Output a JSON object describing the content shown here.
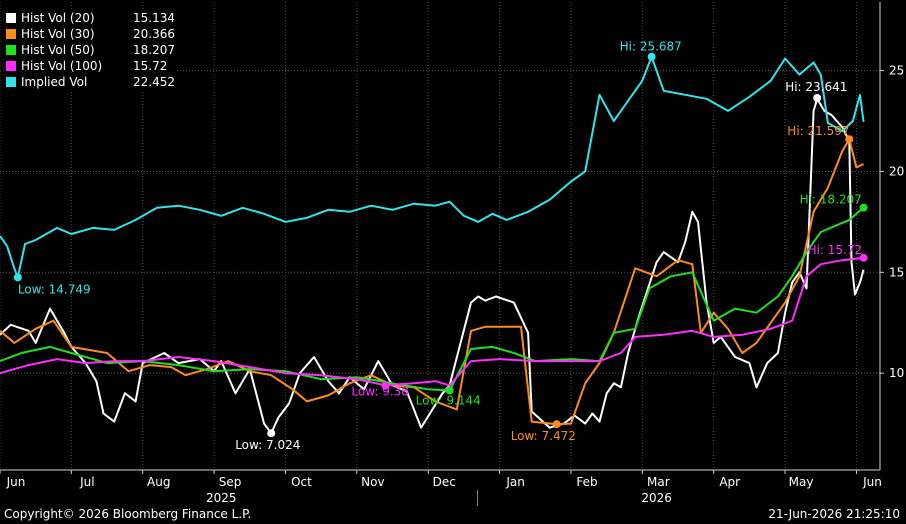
{
  "chart_data": {
    "type": "line",
    "ylim": [
      5.2,
      28.4
    ],
    "yticks": [
      10,
      15,
      20,
      25
    ],
    "month_ticks": [
      "Jun",
      "Jul",
      "Aug",
      "Sep",
      "Oct",
      "Nov",
      "Dec",
      "Jan",
      "Feb",
      "Mar",
      "Apr",
      "May",
      "Jun"
    ],
    "years": [
      {
        "label": "2025"
      },
      {
        "label": "2026"
      }
    ],
    "series": [
      {
        "name": "Hist Vol (20)",
        "last": "15.134",
        "color": "#ffffff",
        "points": [
          [
            0,
            11.9
          ],
          [
            0.15,
            12.4
          ],
          [
            0.4,
            12.1
          ],
          [
            0.5,
            11.5
          ],
          [
            0.7,
            13.2
          ],
          [
            0.9,
            12.0
          ],
          [
            1.0,
            11.3
          ],
          [
            1.2,
            10.5
          ],
          [
            1.35,
            9.6
          ],
          [
            1.45,
            8.0
          ],
          [
            1.6,
            7.6
          ],
          [
            1.75,
            9.0
          ],
          [
            1.9,
            8.6
          ],
          [
            2.0,
            10.5
          ],
          [
            2.3,
            11.0
          ],
          [
            2.5,
            10.5
          ],
          [
            2.8,
            10.7
          ],
          [
            3.0,
            10.1
          ],
          [
            3.1,
            10.6
          ],
          [
            3.3,
            9.0
          ],
          [
            3.5,
            10.2
          ],
          [
            3.7,
            7.5
          ],
          [
            3.8,
            7.02
          ],
          [
            3.9,
            7.8
          ],
          [
            4.05,
            8.5
          ],
          [
            4.2,
            10.0
          ],
          [
            4.4,
            10.8
          ],
          [
            4.6,
            9.6
          ],
          [
            4.75,
            9.0
          ],
          [
            4.9,
            9.8
          ],
          [
            5.1,
            9.2
          ],
          [
            5.3,
            10.6
          ],
          [
            5.5,
            9.4
          ],
          [
            5.7,
            9.1
          ],
          [
            5.9,
            7.3
          ],
          [
            6.2,
            9.0
          ],
          [
            6.3,
            9.4
          ],
          [
            6.6,
            13.5
          ],
          [
            6.7,
            13.8
          ],
          [
            6.8,
            13.6
          ],
          [
            6.95,
            13.8
          ],
          [
            7.2,
            13.5
          ],
          [
            7.4,
            12.0
          ],
          [
            7.45,
            8.1
          ],
          [
            7.7,
            7.3
          ],
          [
            7.9,
            7.5
          ],
          [
            8.05,
            7.9
          ],
          [
            8.2,
            7.5
          ],
          [
            8.3,
            8.0
          ],
          [
            8.4,
            7.6
          ],
          [
            8.5,
            9.0
          ],
          [
            8.6,
            9.5
          ],
          [
            8.7,
            9.3
          ],
          [
            8.8,
            11.0
          ],
          [
            8.95,
            12.8
          ],
          [
            9.2,
            15.5
          ],
          [
            9.3,
            16.0
          ],
          [
            9.5,
            15.5
          ],
          [
            9.6,
            16.5
          ],
          [
            9.7,
            18.0
          ],
          [
            9.78,
            17.5
          ],
          [
            9.9,
            13.5
          ],
          [
            10.0,
            11.5
          ],
          [
            10.1,
            11.8
          ],
          [
            10.3,
            10.8
          ],
          [
            10.5,
            10.5
          ],
          [
            10.6,
            9.3
          ],
          [
            10.75,
            10.5
          ],
          [
            10.9,
            11.0
          ],
          [
            11.0,
            13.0
          ],
          [
            11.1,
            14.5
          ],
          [
            11.2,
            15.0
          ],
          [
            11.3,
            14.2
          ],
          [
            11.4,
            23.0
          ],
          [
            11.45,
            23.6
          ],
          [
            11.55,
            23.0
          ],
          [
            11.65,
            22.8
          ],
          [
            11.8,
            22.2
          ],
          [
            11.9,
            21.5
          ],
          [
            11.93,
            15.5
          ],
          [
            11.98,
            13.9
          ],
          [
            12.05,
            14.5
          ],
          [
            12.1,
            15.13
          ]
        ]
      },
      {
        "name": "Hist Vol (30)",
        "last": "20.366",
        "color": "#ff8b19",
        "points": [
          [
            0,
            12.1
          ],
          [
            0.2,
            11.5
          ],
          [
            0.5,
            12.2
          ],
          [
            0.75,
            12.6
          ],
          [
            1.0,
            11.3
          ],
          [
            1.5,
            11.0
          ],
          [
            1.8,
            10.1
          ],
          [
            2.1,
            10.4
          ],
          [
            2.4,
            10.3
          ],
          [
            2.6,
            9.9
          ],
          [
            2.9,
            10.2
          ],
          [
            3.2,
            10.6
          ],
          [
            3.5,
            10.1
          ],
          [
            3.8,
            9.9
          ],
          [
            4.1,
            9.2
          ],
          [
            4.3,
            8.6
          ],
          [
            4.6,
            8.9
          ],
          [
            4.9,
            9.5
          ],
          [
            5.2,
            9.9
          ],
          [
            5.5,
            9.4
          ],
          [
            5.8,
            9.3
          ],
          [
            6.1,
            8.6
          ],
          [
            6.4,
            8.2
          ],
          [
            6.6,
            12.1
          ],
          [
            6.8,
            12.3
          ],
          [
            7.1,
            12.3
          ],
          [
            7.3,
            12.3
          ],
          [
            7.45,
            7.6
          ],
          [
            7.8,
            7.47
          ],
          [
            8.0,
            7.5
          ],
          [
            8.2,
            9.5
          ],
          [
            8.4,
            10.5
          ],
          [
            8.6,
            12.0
          ],
          [
            8.9,
            15.2
          ],
          [
            9.2,
            14.8
          ],
          [
            9.5,
            15.6
          ],
          [
            9.7,
            15.4
          ],
          [
            9.82,
            12.0
          ],
          [
            10.0,
            13.0
          ],
          [
            10.2,
            12.2
          ],
          [
            10.4,
            11.0
          ],
          [
            10.6,
            11.5
          ],
          [
            10.8,
            12.5
          ],
          [
            11.0,
            13.5
          ],
          [
            11.2,
            14.8
          ],
          [
            11.4,
            18.0
          ],
          [
            11.6,
            19.2
          ],
          [
            11.8,
            21.0
          ],
          [
            11.9,
            21.6
          ],
          [
            12.0,
            20.2
          ],
          [
            12.1,
            20.37
          ]
        ]
      },
      {
        "name": "Hist Vol (50)",
        "last": "18.207",
        "color": "#1ee11e",
        "points": [
          [
            0,
            10.6
          ],
          [
            0.3,
            11.0
          ],
          [
            0.7,
            11.3
          ],
          [
            1.0,
            11.0
          ],
          [
            1.5,
            10.5
          ],
          [
            2.0,
            10.6
          ],
          [
            2.5,
            10.4
          ],
          [
            3.0,
            10.1
          ],
          [
            3.5,
            10.2
          ],
          [
            4.0,
            10.1
          ],
          [
            4.5,
            9.7
          ],
          [
            5.0,
            9.8
          ],
          [
            5.5,
            9.5
          ],
          [
            6.0,
            9.2
          ],
          [
            6.3,
            9.14
          ],
          [
            6.6,
            11.2
          ],
          [
            6.9,
            11.3
          ],
          [
            7.2,
            11.0
          ],
          [
            7.5,
            10.6
          ],
          [
            8.0,
            10.7
          ],
          [
            8.4,
            10.6
          ],
          [
            8.6,
            12.0
          ],
          [
            8.9,
            12.2
          ],
          [
            9.1,
            14.2
          ],
          [
            9.4,
            14.8
          ],
          [
            9.7,
            15.0
          ],
          [
            10.0,
            12.6
          ],
          [
            10.3,
            13.2
          ],
          [
            10.6,
            13.0
          ],
          [
            10.9,
            13.8
          ],
          [
            11.1,
            14.8
          ],
          [
            11.3,
            16.0
          ],
          [
            11.5,
            17.0
          ],
          [
            11.7,
            17.3
          ],
          [
            11.9,
            17.6
          ],
          [
            12.1,
            18.21
          ]
        ]
      },
      {
        "name": "Hist Vol (100)",
        "last": "15.72",
        "color": "#ff2cff",
        "points": [
          [
            0,
            10.0
          ],
          [
            0.4,
            10.4
          ],
          [
            0.8,
            10.7
          ],
          [
            1.2,
            10.5
          ],
          [
            1.6,
            10.6
          ],
          [
            2.0,
            10.6
          ],
          [
            2.5,
            10.8
          ],
          [
            3.0,
            10.6
          ],
          [
            3.5,
            10.3
          ],
          [
            4.0,
            10.0
          ],
          [
            4.5,
            9.9
          ],
          [
            5.0,
            9.7
          ],
          [
            5.4,
            9.4
          ],
          [
            5.8,
            9.5
          ],
          [
            6.1,
            9.6
          ],
          [
            6.3,
            9.4
          ],
          [
            6.6,
            10.6
          ],
          [
            7.0,
            10.7
          ],
          [
            7.5,
            10.6
          ],
          [
            8.0,
            10.6
          ],
          [
            8.4,
            10.6
          ],
          [
            8.7,
            11.0
          ],
          [
            8.9,
            11.8
          ],
          [
            9.3,
            11.9
          ],
          [
            9.7,
            12.1
          ],
          [
            10.0,
            11.8
          ],
          [
            10.4,
            11.9
          ],
          [
            10.8,
            12.2
          ],
          [
            11.1,
            12.6
          ],
          [
            11.3,
            14.8
          ],
          [
            11.5,
            15.4
          ],
          [
            11.8,
            15.6
          ],
          [
            12.1,
            15.72
          ]
        ]
      },
      {
        "name": "Implied Vol",
        "last": "22.452",
        "color": "#2de6ee",
        "points": [
          [
            0,
            16.8
          ],
          [
            0.1,
            16.3
          ],
          [
            0.2,
            15.2
          ],
          [
            0.25,
            14.75
          ],
          [
            0.35,
            16.4
          ],
          [
            0.5,
            16.6
          ],
          [
            0.8,
            17.2
          ],
          [
            1.0,
            16.9
          ],
          [
            1.3,
            17.2
          ],
          [
            1.6,
            17.1
          ],
          [
            1.9,
            17.6
          ],
          [
            2.2,
            18.2
          ],
          [
            2.5,
            18.3
          ],
          [
            2.8,
            18.1
          ],
          [
            3.1,
            17.8
          ],
          [
            3.4,
            18.2
          ],
          [
            3.7,
            17.9
          ],
          [
            4.0,
            17.5
          ],
          [
            4.3,
            17.7
          ],
          [
            4.6,
            18.1
          ],
          [
            4.9,
            18.0
          ],
          [
            5.2,
            18.3
          ],
          [
            5.5,
            18.1
          ],
          [
            5.8,
            18.4
          ],
          [
            6.1,
            18.3
          ],
          [
            6.3,
            18.5
          ],
          [
            6.5,
            17.8
          ],
          [
            6.7,
            17.5
          ],
          [
            6.9,
            17.9
          ],
          [
            7.1,
            17.6
          ],
          [
            7.4,
            18.0
          ],
          [
            7.7,
            18.6
          ],
          [
            8.0,
            19.5
          ],
          [
            8.2,
            20.0
          ],
          [
            8.4,
            23.8
          ],
          [
            8.6,
            22.5
          ],
          [
            8.8,
            23.5
          ],
          [
            9.0,
            24.5
          ],
          [
            9.13,
            25.69
          ],
          [
            9.3,
            24.0
          ],
          [
            9.6,
            23.8
          ],
          [
            9.9,
            23.6
          ],
          [
            10.2,
            23.0
          ],
          [
            10.5,
            23.7
          ],
          [
            10.8,
            24.5
          ],
          [
            11.0,
            25.6
          ],
          [
            11.2,
            24.8
          ],
          [
            11.4,
            25.4
          ],
          [
            11.5,
            24.8
          ],
          [
            11.6,
            22.4
          ],
          [
            11.8,
            22.0
          ],
          [
            11.95,
            22.5
          ],
          [
            12.05,
            23.8
          ],
          [
            12.1,
            22.45
          ]
        ]
      }
    ],
    "annotations": [
      {
        "text": "Hi: 25.687",
        "series": 4,
        "x": 9.13,
        "y": 25.687,
        "color": "#2de6ee",
        "dx": -32,
        "dy": -6
      },
      {
        "text": "Low: 14.749",
        "series": 4,
        "x": 0.25,
        "y": 14.749,
        "color": "#2de6ee",
        "dx": 0,
        "dy": 16
      },
      {
        "text": "Hi: 23.641",
        "series": 0,
        "x": 11.45,
        "y": 23.641,
        "color": "#ffffff",
        "dx": -32,
        "dy": -7
      },
      {
        "text": "Low: 7.024",
        "series": 0,
        "x": 3.8,
        "y": 7.024,
        "color": "#ffffff",
        "dx": -36,
        "dy": 16
      },
      {
        "text": "Hi: 21.597",
        "series": 1,
        "x": 11.9,
        "y": 21.597,
        "color": "#ff8b19",
        "dx": -62,
        "dy": -4
      },
      {
        "text": "Low: 7.472",
        "series": 1,
        "x": 7.8,
        "y": 7.472,
        "color": "#ff8b19",
        "dx": -46,
        "dy": 16
      },
      {
        "text": "Hi: 18.207",
        "series": 2,
        "x": 12.1,
        "y": 18.207,
        "color": "#1ee11e",
        "dx": -64,
        "dy": -4
      },
      {
        "text": "Low: 9.144",
        "series": 2,
        "x": 6.3,
        "y": 9.144,
        "color": "#1ee11e",
        "dx": -34,
        "dy": 14
      },
      {
        "text": "Hi: 15.72",
        "series": 3,
        "x": 12.1,
        "y": 15.72,
        "color": "#ff2cff",
        "dx": -56,
        "dy": -4
      },
      {
        "text": "Low: 9.38",
        "series": 3,
        "x": 5.4,
        "y": 9.38,
        "color": "#ff2cff",
        "dx": -34,
        "dy": 10
      }
    ]
  },
  "footer": {
    "copyright": "Copyright© 2026 Bloomberg Finance L.P.",
    "timestamp": "21-Jun-2026 21:25:10"
  }
}
